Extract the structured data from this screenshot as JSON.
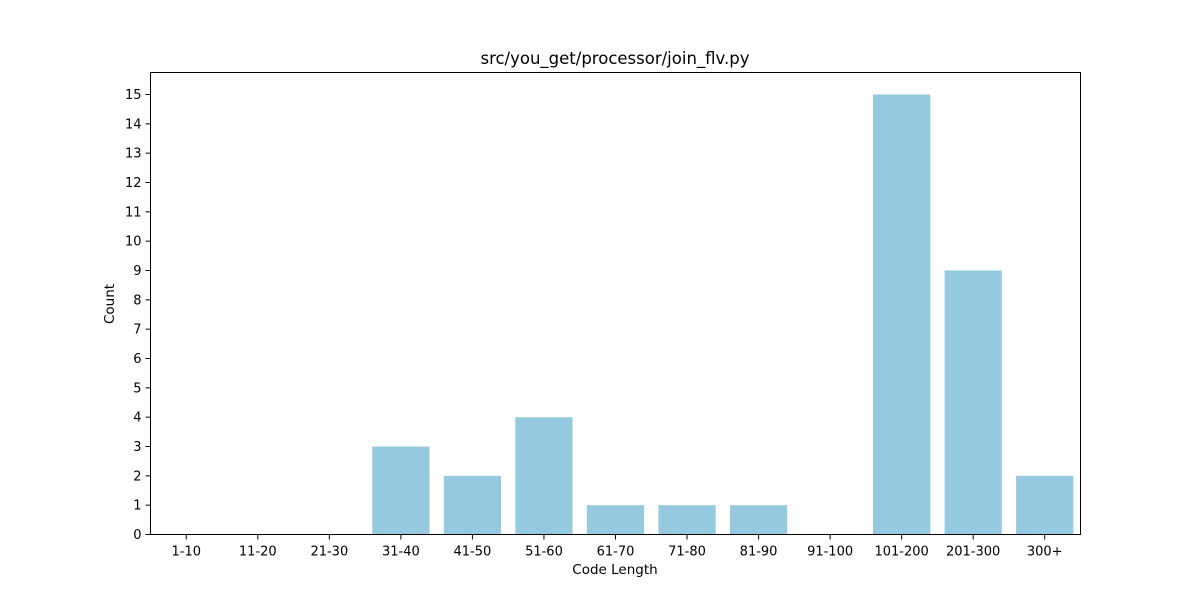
{
  "chart_data": {
    "type": "bar",
    "title": "src/you_get/processor/join_flv.py",
    "xlabel": "Code Length",
    "ylabel": "Count",
    "categories": [
      "1-10",
      "11-20",
      "21-30",
      "31-40",
      "41-50",
      "51-60",
      "61-70",
      "71-80",
      "81-90",
      "91-100",
      "101-200",
      "201-300",
      "300+"
    ],
    "values": [
      0,
      0,
      0,
      3,
      2,
      4,
      1,
      1,
      1,
      0,
      15,
      9,
      2
    ],
    "ylim": [
      0,
      15.75
    ],
    "yticks": [
      0,
      1,
      2,
      3,
      4,
      5,
      6,
      7,
      8,
      9,
      10,
      11,
      12,
      13,
      14,
      15
    ],
    "bar_color": "#95c9df",
    "grid": false,
    "legend": false
  }
}
